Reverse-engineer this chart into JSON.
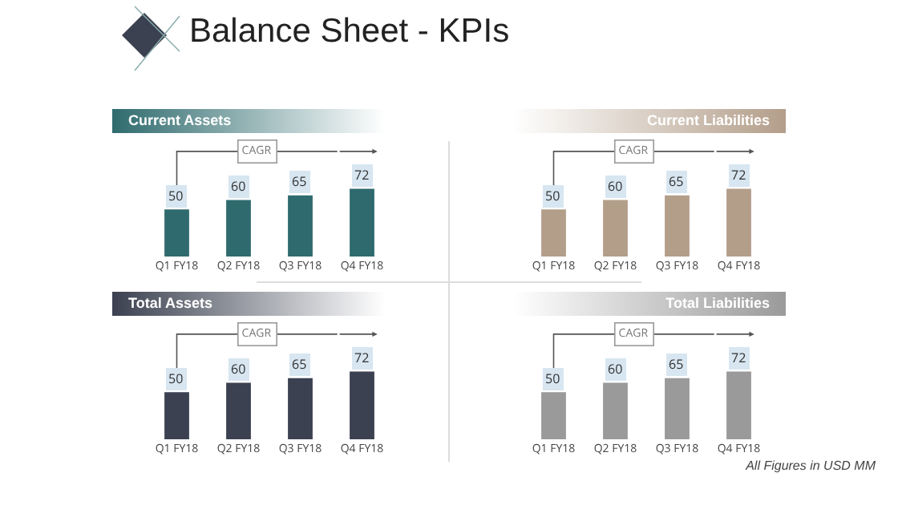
{
  "chart_data": [
    {
      "type": "other",
      "title": "Balance Sheet - KPIs",
      "annotations": [
        "All Figures in USD MM"
      ]
    },
    {
      "type": "bar",
      "title": "Current Assets",
      "categories": [
        "Q1 FY18",
        "Q2 FY18",
        "Q3 FY18",
        "Q4 FY18"
      ],
      "values": [
        50,
        60,
        65,
        72
      ],
      "color": "#2f6b6e",
      "data_labels": true,
      "annotations": [
        "CAGR"
      ]
    },
    {
      "type": "bar",
      "title": "Current Liabilities",
      "categories": [
        "Q1 FY18",
        "Q2 FY18",
        "Q3 FY18",
        "Q4 FY18"
      ],
      "values": [
        50,
        60,
        65,
        72
      ],
      "color": "#b39e8a",
      "data_labels": true,
      "annotations": [
        "CAGR"
      ]
    },
    {
      "type": "bar",
      "title": "Total Assets",
      "categories": [
        "Q1 FY18",
        "Q2 FY18",
        "Q3 FY18",
        "Q4 FY18"
      ],
      "values": [
        50,
        60,
        65,
        72
      ],
      "color": "#3b4150",
      "data_labels": true,
      "annotations": [
        "CAGR"
      ]
    },
    {
      "type": "bar",
      "title": "Total Liabilities",
      "categories": [
        "Q1 FY18",
        "Q2 FY18",
        "Q3 FY18",
        "Q4 FY18"
      ],
      "values": [
        50,
        60,
        65,
        72
      ],
      "color": "#9a9a9a",
      "data_labels": true,
      "annotations": [
        "CAGR"
      ]
    }
  ]
}
